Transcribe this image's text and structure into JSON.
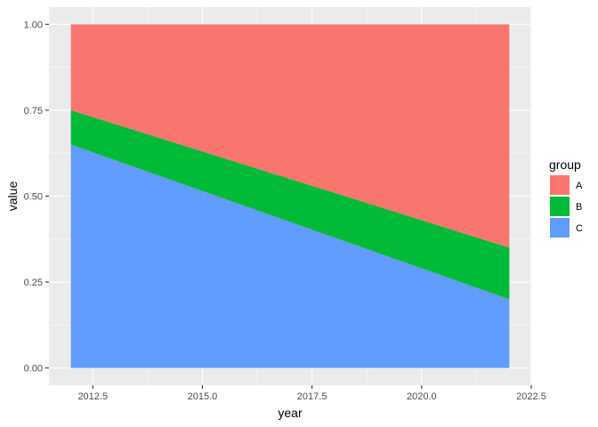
{
  "chart_data": {
    "type": "area",
    "stacked": true,
    "title": "",
    "xlabel": "year",
    "ylabel": "value",
    "x": [
      2012,
      2022
    ],
    "xlim": [
      2011.5,
      2022.5
    ],
    "ylim": [
      -0.05,
      1.05
    ],
    "x_ticks": [
      2012.5,
      2015.0,
      2017.5,
      2020.0,
      2022.5
    ],
    "x_tick_labels": [
      "2012.5",
      "2015.0",
      "2017.5",
      "2020.0",
      "2022.5"
    ],
    "y_ticks": [
      0.0,
      0.25,
      0.5,
      0.75,
      1.0
    ],
    "y_tick_labels": [
      "0.00",
      "0.25",
      "0.50",
      "0.75",
      "1.00"
    ],
    "grid": true,
    "legend_title": "group",
    "legend_position": "right",
    "series": [
      {
        "name": "A",
        "values": [
          0.25,
          0.65
        ],
        "color": "#F8766D"
      },
      {
        "name": "B",
        "values": [
          0.1,
          0.15
        ],
        "color": "#00BA38"
      },
      {
        "name": "C",
        "values": [
          0.65,
          0.2
        ],
        "color": "#619CFF"
      }
    ],
    "panel_background": "#EBEBEB",
    "grid_color": "#FFFFFF"
  }
}
